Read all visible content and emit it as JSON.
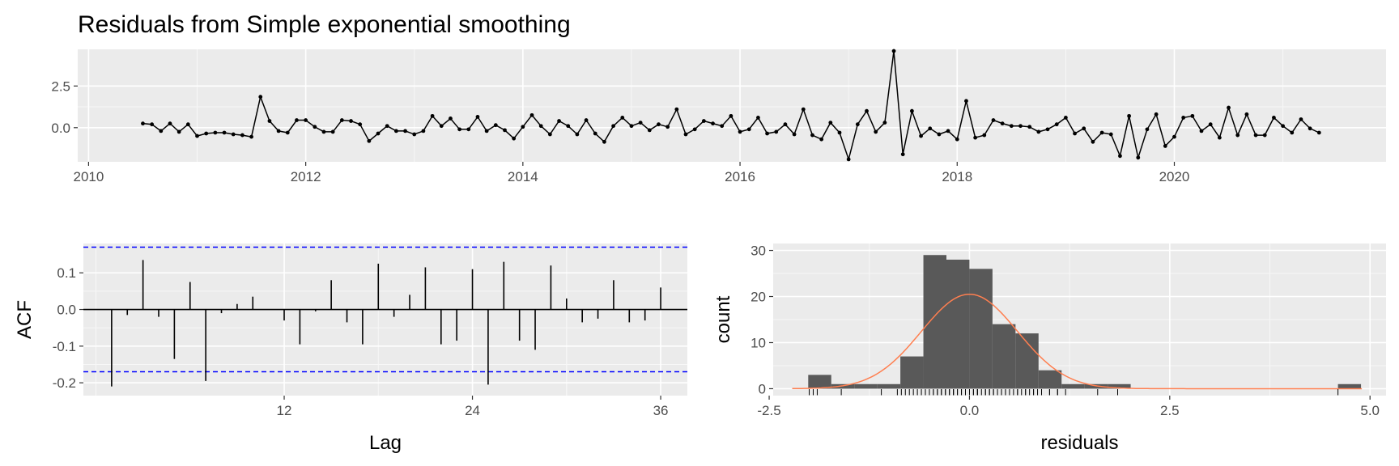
{
  "figure": {
    "title": "Residuals from Simple exponential smoothing"
  },
  "colors": {
    "panel_bg": "#ebebeb",
    "grid_major": "#ffffff",
    "line": "#000000",
    "ci": "#0000ff",
    "bars": "#595959",
    "density": "#ff7f50",
    "tick_text": "#4d4d4d"
  },
  "chart_data": [
    {
      "type": "line",
      "title": "Residuals from Simple exponential smoothing",
      "xlabel": "",
      "ylabel": "",
      "xlim": [
        2009.9,
        2021.95
      ],
      "ylim": [
        -2.05,
        4.7
      ],
      "x_ticks": [
        2010,
        2012,
        2014,
        2016,
        2018,
        2020
      ],
      "x_tick_labels": [
        "2010",
        "2012",
        "2014",
        "2016",
        "2018",
        "2020"
      ],
      "y_ticks": [
        0,
        2.5
      ],
      "y_tick_labels": [
        "0.0",
        "2.5"
      ],
      "grid": true,
      "start": 2010.5,
      "frequency": 12,
      "series": [
        {
          "values": [
            0.25,
            0.2,
            -0.2,
            0.25,
            -0.25,
            0.2,
            -0.5,
            -0.35,
            -0.3,
            -0.3,
            -0.4,
            -0.45,
            -0.55,
            1.85,
            0.4,
            -0.2,
            -0.3,
            0.45,
            0.45,
            0.05,
            -0.25,
            -0.25,
            0.45,
            0.4,
            0.2,
            -0.8,
            -0.35,
            0.1,
            -0.2,
            -0.2,
            -0.4,
            -0.2,
            0.7,
            0.1,
            0.55,
            -0.1,
            -0.1,
            0.65,
            -0.2,
            0.15,
            -0.15,
            -0.65,
            0.05,
            0.75,
            0.1,
            -0.4,
            0.4,
            0.1,
            -0.4,
            0.45,
            -0.35,
            -0.85,
            0.1,
            0.6,
            0.1,
            0.3,
            -0.15,
            0.2,
            0.05,
            1.1,
            -0.4,
            -0.1,
            0.4,
            0.25,
            0.1,
            0.7,
            -0.25,
            -0.1,
            0.6,
            -0.35,
            -0.25,
            0.2,
            -0.4,
            1.1,
            -0.45,
            -0.7,
            0.3,
            -0.3,
            -1.9,
            0.2,
            1.0,
            -0.25,
            0.3,
            4.6,
            -1.6,
            1.0,
            -0.5,
            -0.05,
            -0.4,
            -0.2,
            -0.7,
            1.6,
            -0.6,
            -0.45,
            0.45,
            0.25,
            0.1,
            0.1,
            0.05,
            -0.25,
            -0.1,
            0.2,
            0.6,
            -0.35,
            -0.05,
            -0.85,
            -0.3,
            -0.4,
            -1.7,
            0.7,
            -1.8,
            -0.1,
            0.8,
            -1.1,
            -0.55,
            0.6,
            0.7,
            -0.2,
            0.2,
            -0.6,
            1.2,
            -0.45,
            0.8,
            -0.45,
            -0.45,
            0.6,
            0.1,
            -0.3,
            0.5,
            -0.05,
            -0.3
          ]
        }
      ]
    },
    {
      "type": "bar",
      "subtype": "acf",
      "title": "",
      "xlabel": "Lag",
      "ylabel": "ACF",
      "xlim": [
        -0.8,
        37.7
      ],
      "ylim": [
        -0.235,
        0.18
      ],
      "x_ticks": [
        12,
        24,
        36
      ],
      "x_tick_labels": [
        "12",
        "24",
        "36"
      ],
      "y_ticks": [
        -0.2,
        -0.1,
        0.0,
        0.1
      ],
      "y_tick_labels": [
        "-0.2",
        "-0.1",
        "0.0",
        "0.1"
      ],
      "grid": true,
      "confidence_limits": [
        -0.17,
        0.17
      ],
      "lags": [
        1,
        2,
        3,
        4,
        5,
        6,
        7,
        8,
        9,
        10,
        11,
        12,
        13,
        14,
        15,
        16,
        17,
        18,
        19,
        20,
        21,
        22,
        23,
        24,
        25,
        26,
        27,
        28,
        29,
        30,
        31,
        32,
        33,
        34,
        35,
        36
      ],
      "values": [
        -0.21,
        -0.015,
        0.135,
        -0.02,
        -0.135,
        0.075,
        -0.195,
        -0.01,
        0.015,
        0.035,
        0.0,
        -0.03,
        -0.095,
        -0.005,
        0.08,
        -0.035,
        -0.095,
        0.125,
        -0.02,
        0.04,
        0.115,
        -0.095,
        -0.085,
        0.11,
        -0.205,
        0.13,
        -0.085,
        -0.11,
        0.12,
        0.03,
        -0.035,
        -0.025,
        0.08,
        -0.035,
        -0.03,
        0.06
      ]
    },
    {
      "type": "bar",
      "subtype": "histogram",
      "title": "",
      "xlabel": "residuals",
      "ylabel": "count",
      "xlim": [
        -2.45,
        5.2
      ],
      "ylim": [
        -1.5,
        31.5
      ],
      "x_ticks": [
        -2.5,
        0.0,
        2.5,
        5.0
      ],
      "x_tick_labels": [
        "-2.5",
        "0.0",
        "2.5",
        "5.0"
      ],
      "y_ticks": [
        0,
        10,
        20,
        30
      ],
      "y_tick_labels": [
        "0",
        "10",
        "20",
        "30"
      ],
      "grid": true,
      "bin_width": 0.2875,
      "bin_starts": [
        -2.0125,
        -1.725,
        -1.4375,
        -1.15,
        -0.8625,
        -0.575,
        -0.2875,
        0.0,
        0.2875,
        0.575,
        0.8625,
        1.15,
        1.4375,
        1.725,
        2.0125,
        2.3,
        2.5875,
        2.875,
        3.1625,
        3.45,
        3.7375,
        4.025,
        4.3125,
        4.6
      ],
      "counts": [
        3,
        1,
        1,
        1,
        7,
        29,
        28,
        26,
        14,
        12,
        4,
        1,
        1,
        1,
        0,
        0,
        0,
        0,
        0,
        0,
        0,
        0,
        0,
        1
      ],
      "density": {
        "mean": 0.0,
        "sd": 0.6,
        "peak_count": 20.5
      },
      "rug": [
        -2.0,
        -1.95,
        -1.9,
        -1.6,
        -1.1,
        -0.9,
        -0.85,
        -0.8,
        -0.75,
        -0.7,
        -0.65,
        -0.6,
        -0.55,
        -0.5,
        -0.45,
        -0.45,
        -0.4,
        -0.4,
        -0.35,
        -0.35,
        -0.3,
        -0.3,
        -0.25,
        -0.25,
        -0.2,
        -0.2,
        -0.2,
        -0.15,
        -0.15,
        -0.1,
        -0.1,
        -0.1,
        -0.05,
        -0.05,
        0.0,
        0.05,
        0.05,
        0.1,
        0.1,
        0.1,
        0.15,
        0.2,
        0.2,
        0.25,
        0.25,
        0.3,
        0.3,
        0.35,
        0.4,
        0.4,
        0.45,
        0.45,
        0.5,
        0.55,
        0.6,
        0.6,
        0.65,
        0.7,
        0.7,
        0.75,
        0.8,
        0.8,
        0.85,
        0.9,
        1.0,
        1.0,
        1.1,
        1.1,
        1.2,
        1.6,
        1.85,
        4.6
      ]
    }
  ]
}
